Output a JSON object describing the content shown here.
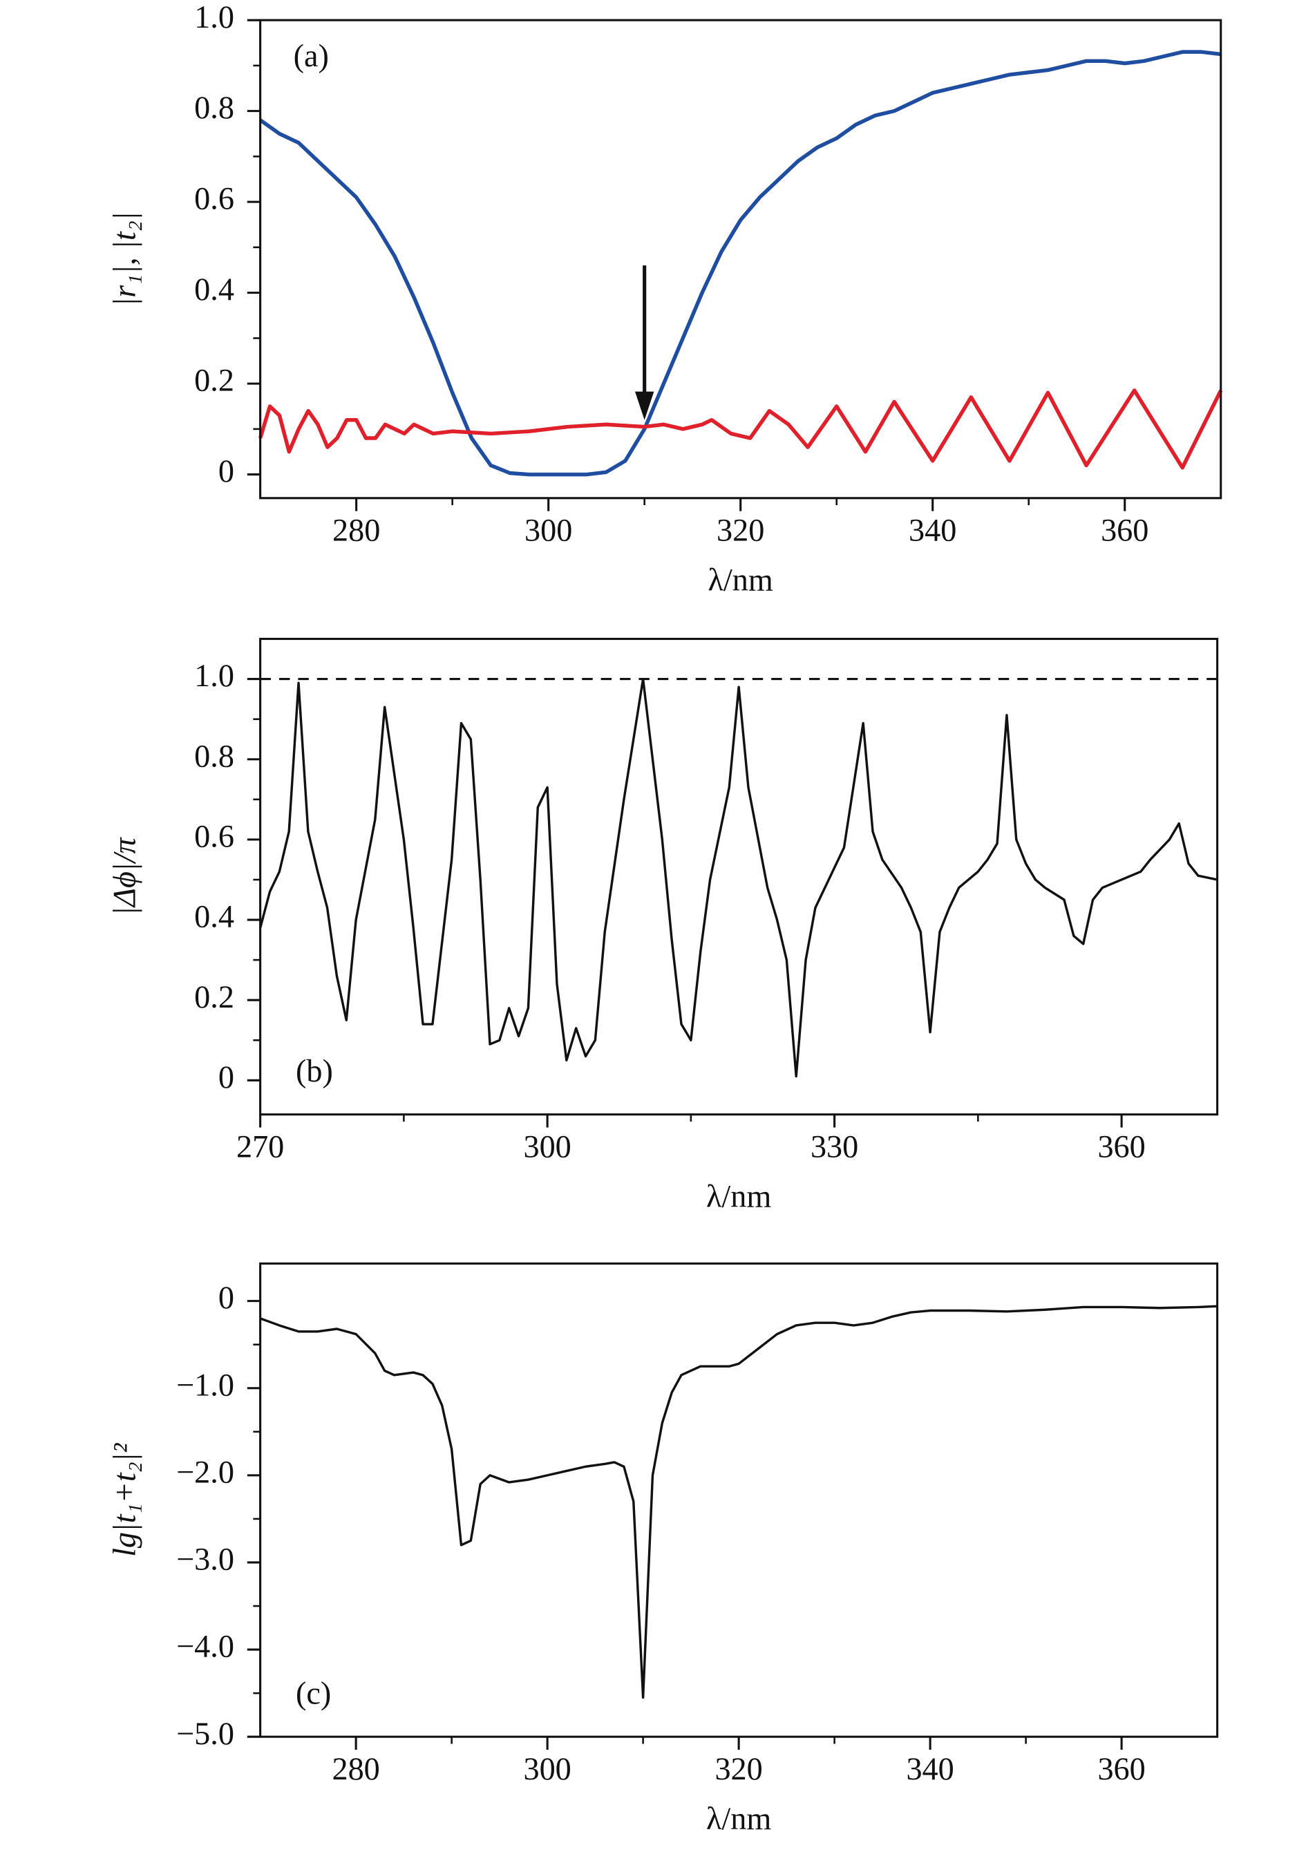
{
  "chart_data": [
    {
      "type": "line",
      "panel_label": "(a)",
      "xlabel": "λ/nm",
      "ylabel": "|r₁|, |t₂|",
      "xlim": [
        270,
        370
      ],
      "xticks": [
        280,
        300,
        320,
        340,
        360
      ],
      "xminor": [
        290,
        310,
        330,
        350
      ],
      "ylim": [
        -0.052,
        1.0
      ],
      "yticks": [
        0,
        0.2,
        0.4,
        0.6,
        0.8,
        {
          "value": 1,
          "label": "1.0"
        }
      ],
      "yminor": [
        0.1,
        0.3,
        0.5,
        0.7,
        0.9
      ],
      "arrow": {
        "x": 310,
        "y_from": 0.46,
        "y_to": 0.12
      },
      "series": [
        {
          "color": "#1f4ea1",
          "x": [
            270,
            272,
            274,
            276,
            278,
            280,
            282,
            284,
            286,
            288,
            290,
            292,
            294,
            296,
            298,
            300,
            302,
            304,
            306,
            308,
            310,
            312,
            314,
            316,
            318,
            320,
            322,
            324,
            326,
            328,
            330,
            332,
            334,
            336,
            338,
            340,
            342,
            344,
            346,
            348,
            350,
            352,
            354,
            356,
            358,
            360,
            362,
            364,
            366,
            368,
            370
          ],
          "values": [
            0.78,
            0.75,
            0.73,
            0.69,
            0.65,
            0.61,
            0.55,
            0.48,
            0.39,
            0.29,
            0.18,
            0.08,
            0.02,
            0.003,
            0,
            0,
            0,
            0,
            0.005,
            0.03,
            0.1,
            0.2,
            0.3,
            0.4,
            0.49,
            0.56,
            0.61,
            0.65,
            0.69,
            0.72,
            0.74,
            0.77,
            0.79,
            0.8,
            0.82,
            0.84,
            0.85,
            0.86,
            0.87,
            0.88,
            0.885,
            0.89,
            0.9,
            0.91,
            0.91,
            0.905,
            0.91,
            0.92,
            0.93,
            0.93,
            0.925
          ]
        },
        {
          "color": "#e0202a",
          "x": [
            270,
            271,
            272,
            273,
            274,
            275,
            276,
            277,
            278,
            279,
            280,
            281,
            282,
            283,
            284,
            285,
            286,
            287,
            288,
            290,
            294,
            298,
            302,
            306,
            310,
            312,
            314,
            316,
            317,
            319,
            321,
            323,
            325,
            327,
            330,
            333,
            336,
            340,
            344,
            348,
            352,
            356,
            361,
            366,
            370
          ],
          "values": [
            0.08,
            0.15,
            0.13,
            0.05,
            0.1,
            0.14,
            0.11,
            0.06,
            0.08,
            0.12,
            0.12,
            0.08,
            0.08,
            0.11,
            0.1,
            0.09,
            0.11,
            0.1,
            0.09,
            0.095,
            0.09,
            0.095,
            0.105,
            0.11,
            0.105,
            0.11,
            0.1,
            0.11,
            0.12,
            0.09,
            0.08,
            0.14,
            0.11,
            0.06,
            0.15,
            0.05,
            0.16,
            0.03,
            0.17,
            0.03,
            0.18,
            0.02,
            0.185,
            0.015,
            0.185
          ]
        }
      ]
    },
    {
      "type": "line",
      "panel_label": "(b)",
      "xlabel": "λ/nm",
      "ylabel": "|Δϕ|/π",
      "xlim": [
        270,
        370
      ],
      "xticks": [
        270,
        300,
        330,
        360
      ],
      "xminor": [
        285,
        315,
        345
      ],
      "ylim": [
        -0.085,
        1.1
      ],
      "yticks": [
        0,
        0.2,
        0.4,
        0.6,
        0.8,
        {
          "value": 1,
          "label": "1.0"
        }
      ],
      "yminor": [
        0.1,
        0.3,
        0.5,
        0.7,
        0.9
      ],
      "hline": 1,
      "series": [
        {
          "color": "#111111",
          "x": [
            270,
            271,
            272,
            273,
            274,
            275,
            276,
            277,
            278,
            279,
            280,
            282,
            283,
            285,
            286,
            287,
            288,
            290,
            291,
            292,
            293,
            294,
            295,
            296,
            297,
            298,
            299,
            300,
            301,
            302,
            303,
            304,
            305,
            306,
            308,
            310,
            312,
            313,
            314,
            315,
            316,
            317,
            319,
            320,
            321,
            323,
            324,
            325,
            326,
            327,
            328,
            330,
            331,
            333,
            334,
            335,
            337,
            338,
            339,
            340,
            341,
            342,
            343,
            345,
            346,
            347,
            348,
            349,
            350,
            351,
            352,
            354,
            355,
            356,
            357,
            358,
            360,
            362,
            363,
            365,
            366,
            367,
            368,
            370
          ],
          "values": [
            0.38,
            0.47,
            0.52,
            0.62,
            0.99,
            0.62,
            0.52,
            0.43,
            0.26,
            0.15,
            0.4,
            0.65,
            0.93,
            0.6,
            0.38,
            0.14,
            0.14,
            0.55,
            0.89,
            0.85,
            0.5,
            0.09,
            0.1,
            0.18,
            0.11,
            0.18,
            0.68,
            0.73,
            0.24,
            0.05,
            0.13,
            0.06,
            0.1,
            0.37,
            0.7,
            1.0,
            0.6,
            0.35,
            0.14,
            0.1,
            0.32,
            0.5,
            0.73,
            0.98,
            0.73,
            0.48,
            0.4,
            0.3,
            0.01,
            0.3,
            0.43,
            0.53,
            0.58,
            0.89,
            0.62,
            0.55,
            0.48,
            0.43,
            0.37,
            0.12,
            0.37,
            0.43,
            0.48,
            0.52,
            0.55,
            0.59,
            0.91,
            0.6,
            0.54,
            0.5,
            0.48,
            0.45,
            0.36,
            0.34,
            0.45,
            0.48,
            0.5,
            0.52,
            0.55,
            0.6,
            0.64,
            0.54,
            0.51,
            0.5
          ]
        }
      ]
    },
    {
      "type": "line",
      "panel_label": "(c)",
      "xlabel": "λ/nm",
      "ylabel": "lg|t₁+t₂|²",
      "xlim": [
        270,
        370
      ],
      "xticks": [
        280,
        300,
        320,
        340,
        360
      ],
      "xminor": [
        290,
        310,
        330,
        350
      ],
      "ylim": [
        -5,
        0.43
      ],
      "yticks": [
        0,
        {
          "value": -1,
          "label": "−1.0"
        },
        {
          "value": -2,
          "label": "−2.0"
        },
        {
          "value": -3,
          "label": "−3.0"
        },
        {
          "value": -4,
          "label": "−4.0"
        },
        {
          "value": -5,
          "label": "−5.0"
        }
      ],
      "yminor": [
        -0.5,
        -1.5,
        -2.5,
        -3.5,
        -4.5
      ],
      "series": [
        {
          "color": "#111111",
          "x": [
            270,
            272,
            274,
            276,
            278,
            280,
            282,
            283,
            284,
            286,
            287,
            288,
            289,
            290,
            291,
            292,
            293,
            294,
            296,
            298,
            300,
            302,
            304,
            306,
            307,
            308,
            309,
            310,
            311,
            312,
            313,
            314,
            316,
            318,
            319,
            320,
            322,
            324,
            326,
            328,
            330,
            332,
            334,
            336,
            338,
            340,
            344,
            348,
            352,
            356,
            360,
            364,
            368,
            370
          ],
          "values": [
            -0.2,
            -0.28,
            -0.35,
            -0.35,
            -0.32,
            -0.38,
            -0.6,
            -0.8,
            -0.85,
            -0.82,
            -0.85,
            -0.95,
            -1.2,
            -1.7,
            -2.8,
            -2.75,
            -2.1,
            -2.0,
            -2.08,
            -2.05,
            -2.0,
            -1.95,
            -1.9,
            -1.87,
            -1.85,
            -1.9,
            -2.3,
            -4.55,
            -2.0,
            -1.4,
            -1.05,
            -0.85,
            -0.75,
            -0.75,
            -0.75,
            -0.72,
            -0.55,
            -0.38,
            -0.28,
            -0.25,
            -0.25,
            -0.28,
            -0.25,
            -0.18,
            -0.13,
            -0.11,
            -0.11,
            -0.12,
            -0.1,
            -0.07,
            -0.07,
            -0.08,
            -0.07,
            -0.06
          ]
        }
      ]
    }
  ]
}
